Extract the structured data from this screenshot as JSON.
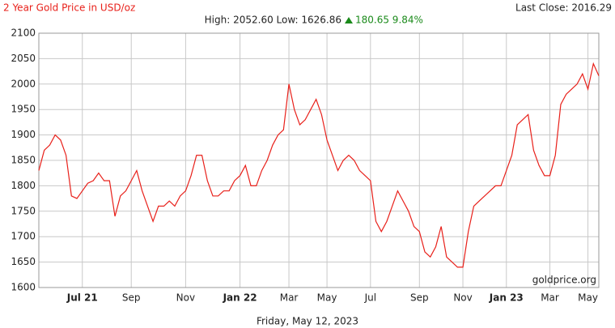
{
  "chart_data": {
    "type": "line",
    "title": "2 Year Gold Price in USD/oz",
    "stats_text": "High: 2052.60 Low: 1626.86",
    "change_text": "180.65 9.84%",
    "last_close": "Last Close: 2016.29",
    "date_label": "Friday, May 12, 2023",
    "watermark": "goldprice.org",
    "categories": [
      null,
      null,
      null,
      null,
      null,
      null,
      null,
      null,
      "Jul 21",
      null,
      null,
      null,
      null,
      null,
      null,
      null,
      null,
      "Sep",
      null,
      null,
      null,
      null,
      null,
      null,
      null,
      null,
      null,
      "Nov",
      null,
      null,
      null,
      null,
      null,
      null,
      null,
      null,
      null,
      "Jan 22",
      null,
      null,
      null,
      null,
      null,
      null,
      null,
      null,
      "Mar",
      null,
      null,
      null,
      null,
      null,
      null,
      "May",
      null,
      null,
      null,
      null,
      null,
      null,
      null,
      "Jul",
      null,
      null,
      null,
      null,
      null,
      null,
      null,
      null,
      "Sep",
      null,
      null,
      null,
      null,
      null,
      null,
      null,
      "Nov",
      null,
      null,
      null,
      null,
      null,
      null,
      null,
      "Jan 23",
      null,
      null,
      null,
      null,
      null,
      null,
      null,
      "Mar",
      null,
      null,
      null,
      null,
      null,
      null,
      "May",
      null,
      null
    ],
    "series": [
      {
        "name": "Gold",
        "color": "#e8201a",
        "values": [
          1830,
          1870,
          1880,
          1900,
          1890,
          1860,
          1780,
          1775,
          1790,
          1805,
          1810,
          1825,
          1810,
          1810,
          1740,
          1780,
          1790,
          1810,
          1830,
          1790,
          1760,
          1730,
          1760,
          1760,
          1770,
          1760,
          1780,
          1790,
          1820,
          1860,
          1860,
          1810,
          1780,
          1780,
          1790,
          1790,
          1810,
          1820,
          1840,
          1800,
          1800,
          1830,
          1850,
          1880,
          1900,
          1910,
          2000,
          1950,
          1920,
          1930,
          1950,
          1970,
          1940,
          1890,
          1860,
          1830,
          1850,
          1860,
          1850,
          1830,
          1820,
          1810,
          1730,
          1710,
          1730,
          1760,
          1790,
          1770,
          1750,
          1720,
          1710,
          1670,
          1660,
          1680,
          1720,
          1660,
          1650,
          1640,
          1640,
          1710,
          1760,
          1770,
          1780,
          1790,
          1800,
          1800,
          1830,
          1860,
          1920,
          1930,
          1940,
          1870,
          1840,
          1820,
          1820,
          1860,
          1960,
          1980,
          1990,
          2000,
          2020,
          1990,
          2040,
          2016.29
        ]
      }
    ],
    "ylim": [
      1600,
      2100
    ],
    "yticks": [
      1600,
      1650,
      1700,
      1750,
      1800,
      1850,
      1900,
      1950,
      2000,
      2050,
      2100
    ],
    "grid": true
  }
}
